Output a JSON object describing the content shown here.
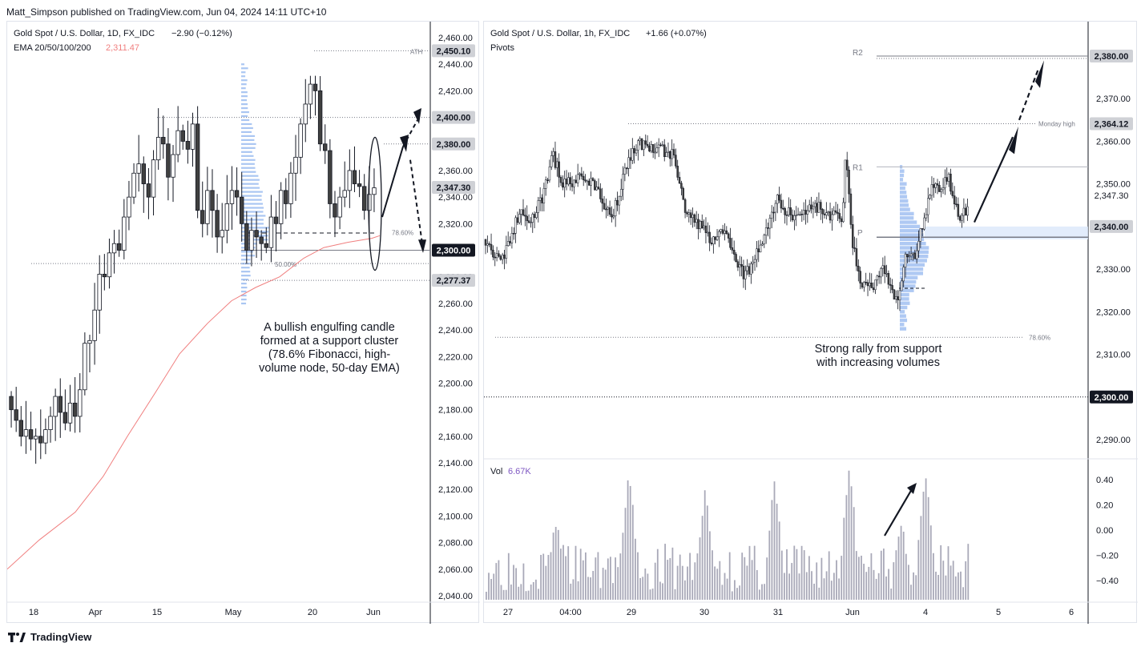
{
  "header": {
    "text": "Matt_Simpson published on TradingView.com, Jun 04, 2024 14:11 UTC+10"
  },
  "footer": {
    "logo_icon": "tradingview-logo-icon",
    "brand": "TradingView"
  },
  "colors": {
    "up": "#ffffff",
    "down": "#404040",
    "wick": "#131722",
    "ema": "#f07f7f",
    "volume": "#a9a9b8",
    "volume_profile": "#9bbcf0",
    "accent_purple": "#7e57c2"
  },
  "left_chart": {
    "title": "Gold Spot / U.S. Dollar, 1D, FX_IDC",
    "change": "−2.90 (−0.12%)",
    "ema_label": "EMA 20/50/100/200",
    "ema_value": "2,311.47",
    "y_ticks": [
      "2,460.00",
      "2,440.00",
      "2,420.00",
      "2,400.00",
      "2,380.00",
      "2,360.00",
      "2,340.00",
      "2,320.00",
      "2,300.00",
      "2,280.00",
      "2,260.00",
      "2,240.00",
      "2,220.00",
      "2,200.00",
      "2,180.00",
      "2,160.00",
      "2,140.00",
      "2,120.00",
      "2,100.00",
      "2,080.00",
      "2,060.00",
      "2,040.00"
    ],
    "x_ticks": [
      "18",
      "Apr",
      "15",
      "May",
      "20",
      "Jun"
    ],
    "price_tags": [
      {
        "label": "2,450.10",
        "value": 2450.1,
        "style": "grey"
      },
      {
        "label": "2,400.00",
        "value": 2400,
        "style": "grey"
      },
      {
        "label": "2,380.00",
        "value": 2380,
        "style": "grey"
      },
      {
        "label": "2,347.30",
        "value": 2347.3,
        "style": "grey"
      },
      {
        "label": "2,300.00",
        "value": 2300,
        "style": "dark"
      },
      {
        "label": "2,277.37",
        "value": 2277.37,
        "style": "grey"
      }
    ],
    "annotations": {
      "ath": "ATH",
      "fib786": "78.60%",
      "fib50": "50.00%"
    },
    "callout": [
      "A bullish engulfing candle",
      "formed at a support cluster",
      "(78.6% Fibonacci, high-",
      "volume node, 50-day EMA)"
    ]
  },
  "right_chart": {
    "title": "Gold Spot / U.S. Dollar, 1h, FX_IDC",
    "change": "+1.66 (+0.07%)",
    "pivots_label": "Pivots",
    "y_ticks": [
      "2,380.00",
      "2,370.00",
      "2,360.00",
      "2,350.00",
      "2,340.00",
      "2,330.00",
      "2,320.00",
      "2,310.00",
      "2,300.00",
      "2,290.00"
    ],
    "x_ticks": [
      "27",
      "04:00",
      "29",
      "30",
      "31",
      "Jun",
      "4",
      "5",
      "6"
    ],
    "price_tags": [
      {
        "label": "2,380.00",
        "value": 2380,
        "style": "grey"
      },
      {
        "label": "2,364.12",
        "value": 2364.12,
        "style": "grey"
      },
      {
        "label": "2,347.30",
        "value": 2347.3,
        "style": "plain"
      },
      {
        "label": "2,340.00",
        "value": 2340,
        "style": "grey"
      },
      {
        "label": "2,300.00",
        "value": 2300,
        "style": "dark"
      }
    ],
    "annotations": {
      "r2": "R2",
      "r1": "R1",
      "p": "P",
      "monday_high": "Monday high",
      "fib786": "78.60%"
    },
    "callout": [
      "Strong rally from support",
      "with increasing volumes"
    ],
    "volume": {
      "label": "Vol",
      "value": "6.67K",
      "ticks": [
        "0.40",
        "0.20",
        "0.00",
        "−0.20",
        "−0.40"
      ]
    }
  }
}
